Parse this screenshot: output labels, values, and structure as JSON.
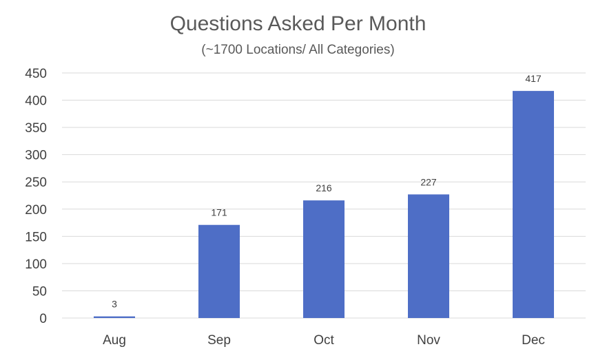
{
  "chart_data": {
    "type": "bar",
    "title": "Questions Asked Per Month",
    "subtitle": "(~1700 Locations/ All Categories)",
    "xlabel": "",
    "ylabel": "",
    "categories": [
      "Aug",
      "Sep",
      "Oct",
      "Nov",
      "Dec"
    ],
    "values": [
      3,
      171,
      216,
      227,
      417
    ],
    "data_labels": [
      "3",
      "171",
      "216",
      "227",
      "417"
    ],
    "ylim": [
      0,
      450
    ],
    "yticks": [
      0,
      50,
      100,
      150,
      200,
      250,
      300,
      350,
      400,
      450
    ],
    "grid": true,
    "legend": "none",
    "bar_color": "#4E6EC6",
    "grid_color": "#D9D9D9"
  }
}
